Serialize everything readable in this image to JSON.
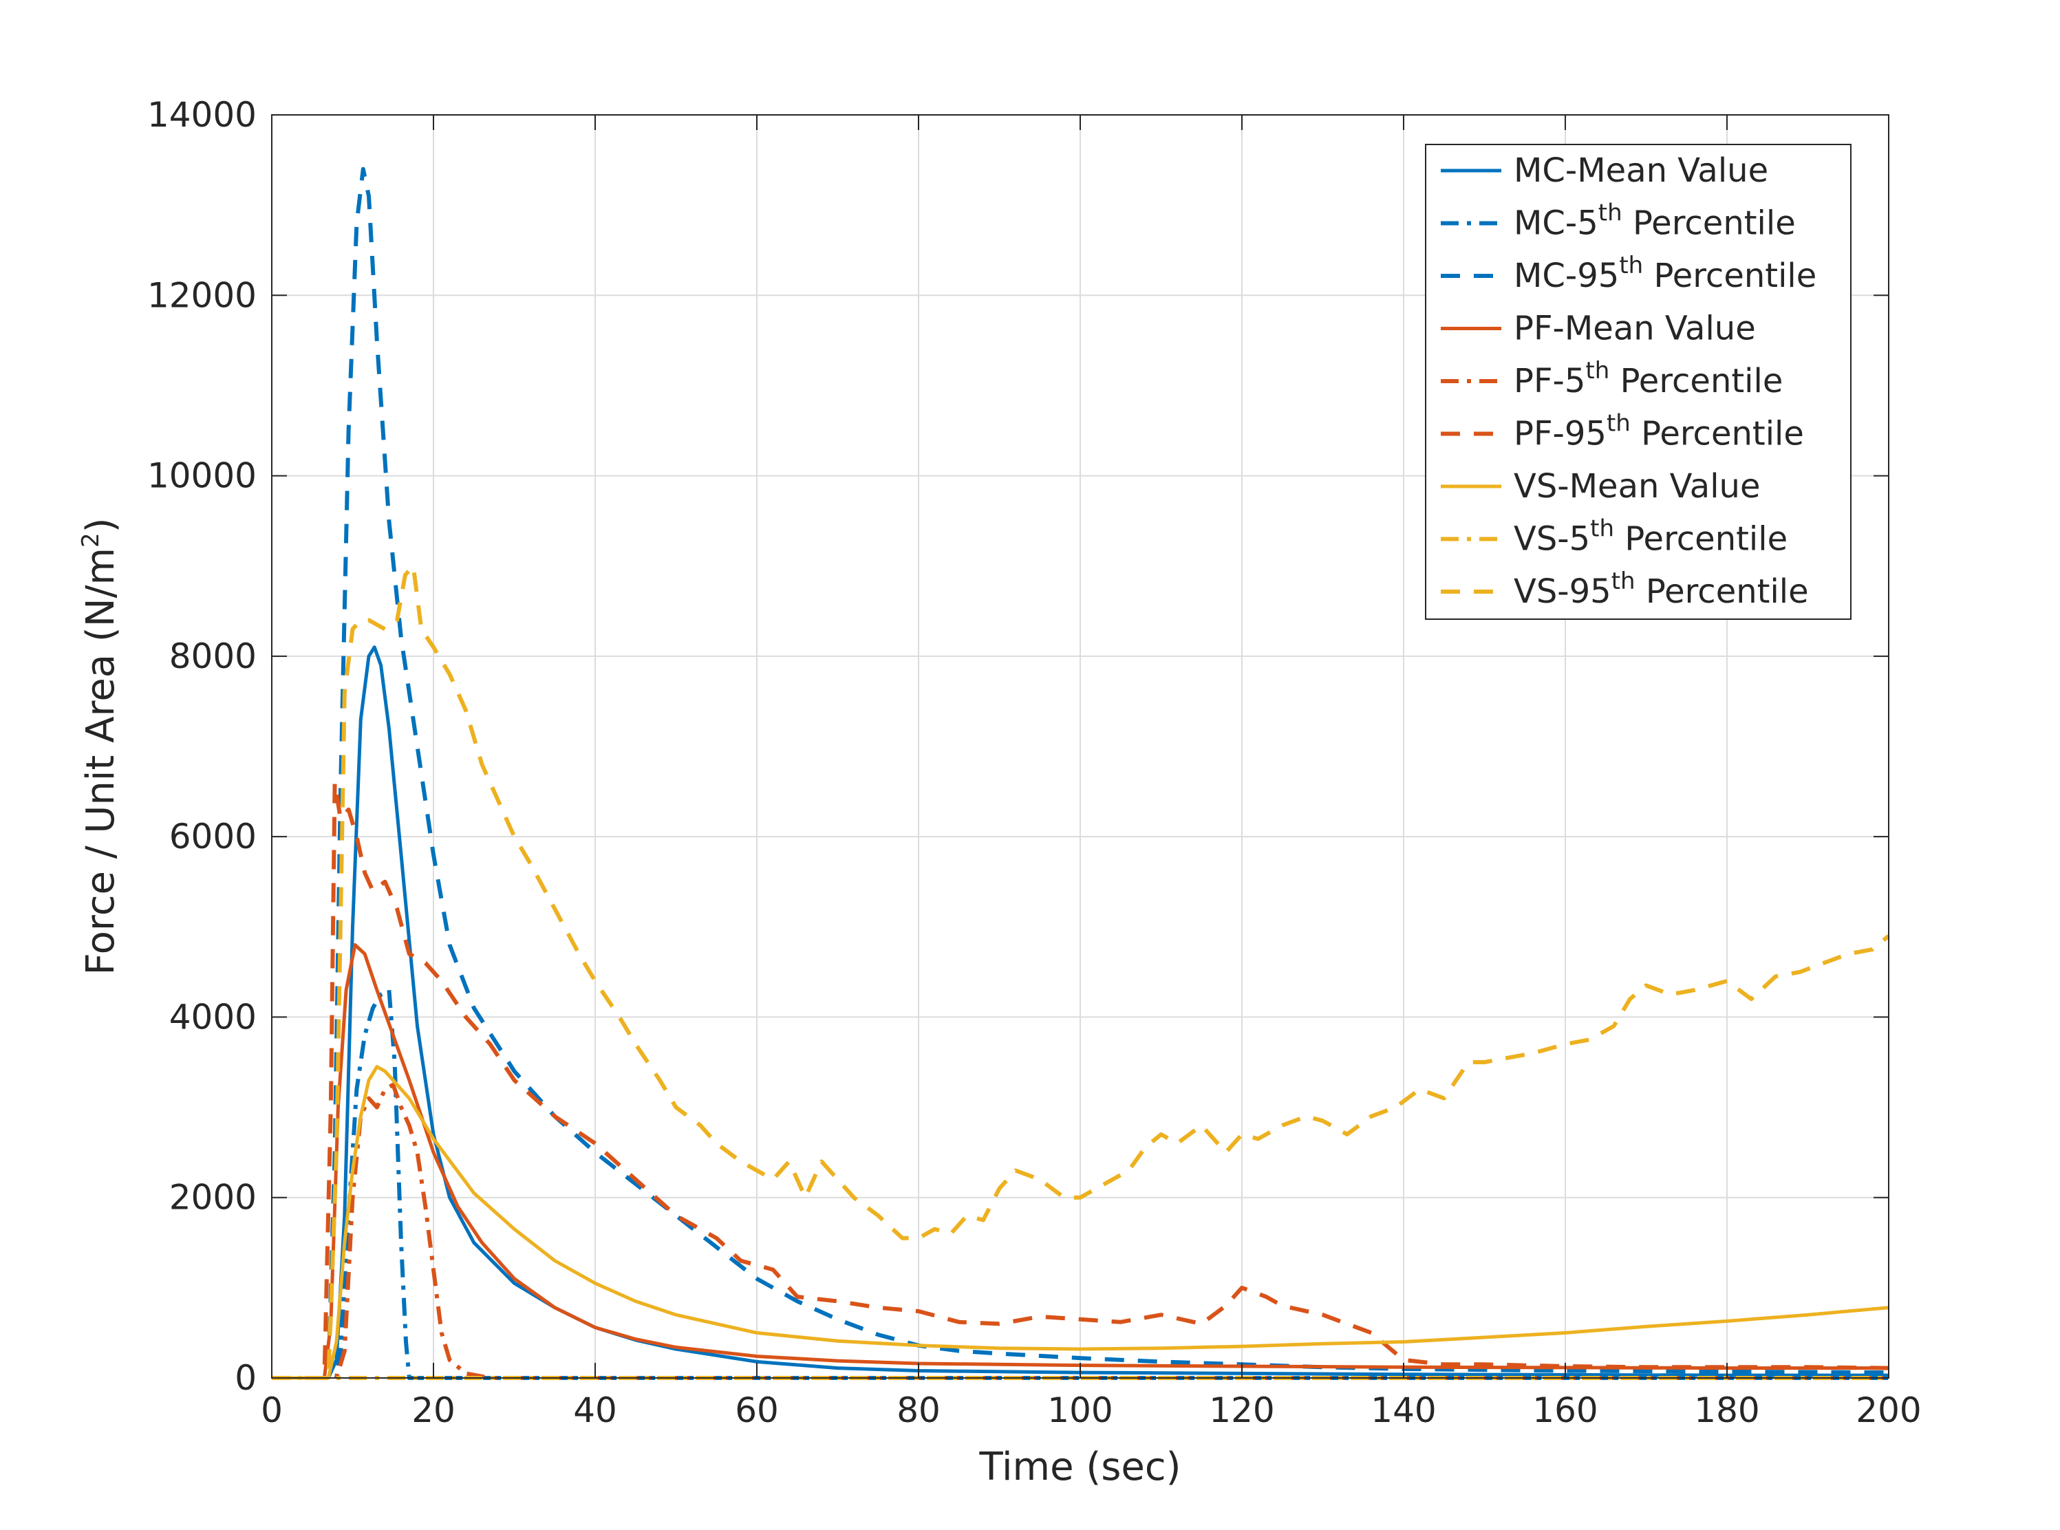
{
  "chart_data": {
    "type": "line",
    "title": "",
    "xlabel": "Time (sec)",
    "ylabel_main": "Force / Unit Area (N/m",
    "ylabel_sup": "2",
    "ylabel_end": ")",
    "xlim": [
      0,
      200
    ],
    "ylim": [
      0,
      14000
    ],
    "xticks": [
      0,
      20,
      40,
      60,
      80,
      100,
      120,
      140,
      160,
      180,
      200
    ],
    "yticks": [
      0,
      2000,
      4000,
      6000,
      8000,
      10000,
      12000,
      14000
    ],
    "grid": true,
    "legend_position": "top-right",
    "colors": {
      "MC": "#0072BD",
      "PF": "#D95319",
      "VS": "#EDB120"
    },
    "series": [
      {
        "name": "MC-Mean Value",
        "group": "MC",
        "style": "solid",
        "prefix": "MC-",
        "sup": "",
        "suffix": "Mean Value",
        "points": [
          [
            0,
            0
          ],
          [
            7,
            0
          ],
          [
            8,
            200
          ],
          [
            9,
            1800
          ],
          [
            10,
            5000
          ],
          [
            11,
            7300
          ],
          [
            12,
            8000
          ],
          [
            12.7,
            8100
          ],
          [
            13.5,
            7900
          ],
          [
            14.5,
            7200
          ],
          [
            16,
            5800
          ],
          [
            18,
            3900
          ],
          [
            20,
            2700
          ],
          [
            22,
            2000
          ],
          [
            25,
            1500
          ],
          [
            30,
            1050
          ],
          [
            35,
            780
          ],
          [
            40,
            560
          ],
          [
            45,
            420
          ],
          [
            50,
            320
          ],
          [
            60,
            180
          ],
          [
            70,
            110
          ],
          [
            80,
            80
          ],
          [
            100,
            60
          ],
          [
            120,
            50
          ],
          [
            140,
            40
          ],
          [
            160,
            35
          ],
          [
            180,
            30
          ],
          [
            200,
            30
          ]
        ]
      },
      {
        "name": "MC-5th Percentile",
        "group": "MC",
        "style": "dashdot",
        "prefix": "MC-",
        "sup": "th",
        "suffix": " Percentile",
        "num": "5",
        "points": [
          [
            0,
            0
          ],
          [
            8,
            0
          ],
          [
            8.5,
            300
          ],
          [
            9.5,
            1800
          ],
          [
            10.5,
            3200
          ],
          [
            11.5,
            3800
          ],
          [
            12.5,
            4100
          ],
          [
            13.5,
            4250
          ],
          [
            14.5,
            4300
          ],
          [
            15.2,
            3500
          ],
          [
            16,
            1500
          ],
          [
            16.6,
            400
          ],
          [
            17,
            0
          ],
          [
            200,
            0
          ]
        ]
      },
      {
        "name": "MC-95th Percentile",
        "group": "MC",
        "style": "dashed",
        "prefix": "MC-",
        "sup": "th",
        "suffix": " Percentile",
        "num": "95",
        "points": [
          [
            0,
            0
          ],
          [
            7,
            0
          ],
          [
            7.8,
            2500
          ],
          [
            8.5,
            6500
          ],
          [
            9.5,
            10500
          ],
          [
            10.5,
            12800
          ],
          [
            11.3,
            13400
          ],
          [
            12,
            13100
          ],
          [
            13,
            11500
          ],
          [
            14.5,
            9500
          ],
          [
            16,
            8200
          ],
          [
            18,
            7000
          ],
          [
            20,
            5800
          ],
          [
            22,
            4800
          ],
          [
            25,
            4100
          ],
          [
            30,
            3400
          ],
          [
            35,
            2900
          ],
          [
            40,
            2500
          ],
          [
            45,
            2150
          ],
          [
            50,
            1800
          ],
          [
            55,
            1450
          ],
          [
            60,
            1100
          ],
          [
            65,
            850
          ],
          [
            70,
            650
          ],
          [
            75,
            480
          ],
          [
            80,
            360
          ],
          [
            85,
            300
          ],
          [
            90,
            270
          ],
          [
            100,
            220
          ],
          [
            110,
            180
          ],
          [
            120,
            150
          ],
          [
            130,
            120
          ],
          [
            140,
            100
          ],
          [
            160,
            80
          ],
          [
            180,
            70
          ],
          [
            200,
            60
          ]
        ]
      },
      {
        "name": "PF-Mean Value",
        "group": "PF",
        "style": "solid",
        "prefix": "PF-",
        "sup": "",
        "suffix": "Mean Value",
        "points": [
          [
            0,
            0
          ],
          [
            6.5,
            0
          ],
          [
            7.3,
            600
          ],
          [
            8.2,
            3000
          ],
          [
            9.2,
            4300
          ],
          [
            10.3,
            4800
          ],
          [
            11.5,
            4700
          ],
          [
            13,
            4300
          ],
          [
            15,
            3800
          ],
          [
            17,
            3300
          ],
          [
            20,
            2500
          ],
          [
            23,
            1900
          ],
          [
            26,
            1500
          ],
          [
            30,
            1100
          ],
          [
            35,
            780
          ],
          [
            40,
            560
          ],
          [
            45,
            430
          ],
          [
            50,
            340
          ],
          [
            60,
            240
          ],
          [
            70,
            190
          ],
          [
            80,
            160
          ],
          [
            100,
            140
          ],
          [
            120,
            130
          ],
          [
            140,
            120
          ],
          [
            160,
            115
          ],
          [
            180,
            110
          ],
          [
            200,
            110
          ]
        ]
      },
      {
        "name": "PF-5th Percentile",
        "group": "PF",
        "style": "dashdot",
        "prefix": "PF-",
        "sup": "th",
        "suffix": " Percentile",
        "num": "5",
        "points": [
          [
            0,
            0
          ],
          [
            8,
            0
          ],
          [
            9,
            300
          ],
          [
            10,
            2000
          ],
          [
            11,
            2900
          ],
          [
            12,
            3100
          ],
          [
            13,
            3000
          ],
          [
            14,
            3200
          ],
          [
            15,
            3250
          ],
          [
            16,
            3000
          ],
          [
            17,
            2800
          ],
          [
            18,
            2500
          ],
          [
            19,
            1900
          ],
          [
            20,
            1200
          ],
          [
            21,
            500
          ],
          [
            22,
            200
          ],
          [
            24,
            50
          ],
          [
            27,
            0
          ],
          [
            200,
            0
          ]
        ]
      },
      {
        "name": "PF-95th Percentile",
        "group": "PF",
        "style": "dashed",
        "prefix": "PF-",
        "sup": "th",
        "suffix": " Percentile",
        "num": "95",
        "points": [
          [
            0,
            0
          ],
          [
            6.5,
            0
          ],
          [
            7.3,
            3000
          ],
          [
            7.8,
            6600
          ],
          [
            8.5,
            6200
          ],
          [
            9.5,
            6300
          ],
          [
            10.5,
            6000
          ],
          [
            11.5,
            5600
          ],
          [
            12.5,
            5400
          ],
          [
            14,
            5500
          ],
          [
            15.5,
            5200
          ],
          [
            17,
            4700
          ],
          [
            19,
            4600
          ],
          [
            21,
            4400
          ],
          [
            24,
            4000
          ],
          [
            27,
            3700
          ],
          [
            30,
            3300
          ],
          [
            35,
            2900
          ],
          [
            40,
            2600
          ],
          [
            45,
            2200
          ],
          [
            50,
            1800
          ],
          [
            55,
            1550
          ],
          [
            58,
            1300
          ],
          [
            62,
            1200
          ],
          [
            65,
            900
          ],
          [
            70,
            850
          ],
          [
            75,
            780
          ],
          [
            80,
            740
          ],
          [
            85,
            620
          ],
          [
            90,
            600
          ],
          [
            95,
            680
          ],
          [
            100,
            650
          ],
          [
            105,
            620
          ],
          [
            110,
            700
          ],
          [
            115,
            600
          ],
          [
            118,
            800
          ],
          [
            120,
            1000
          ],
          [
            123,
            900
          ],
          [
            125,
            800
          ],
          [
            130,
            700
          ],
          [
            133,
            600
          ],
          [
            136,
            500
          ],
          [
            140,
            200
          ],
          [
            145,
            150
          ],
          [
            150,
            150
          ],
          [
            160,
            130
          ],
          [
            170,
            120
          ],
          [
            180,
            120
          ],
          [
            190,
            120
          ],
          [
            200,
            110
          ]
        ]
      },
      {
        "name": "VS-Mean Value",
        "group": "VS",
        "style": "solid",
        "prefix": "VS-",
        "sup": "",
        "suffix": "Mean Value",
        "points": [
          [
            0,
            0
          ],
          [
            7,
            0
          ],
          [
            8,
            400
          ],
          [
            9,
            1500
          ],
          [
            10,
            2300
          ],
          [
            11,
            2900
          ],
          [
            12,
            3300
          ],
          [
            13,
            3450
          ],
          [
            14,
            3400
          ],
          [
            15,
            3300
          ],
          [
            17,
            3100
          ],
          [
            20,
            2650
          ],
          [
            25,
            2050
          ],
          [
            30,
            1650
          ],
          [
            35,
            1300
          ],
          [
            40,
            1050
          ],
          [
            45,
            850
          ],
          [
            50,
            700
          ],
          [
            60,
            500
          ],
          [
            70,
            410
          ],
          [
            80,
            360
          ],
          [
            90,
            330
          ],
          [
            100,
            320
          ],
          [
            110,
            330
          ],
          [
            120,
            350
          ],
          [
            130,
            380
          ],
          [
            140,
            400
          ],
          [
            150,
            450
          ],
          [
            160,
            500
          ],
          [
            170,
            570
          ],
          [
            180,
            630
          ],
          [
            190,
            700
          ],
          [
            200,
            780
          ]
        ]
      },
      {
        "name": "VS-5th Percentile",
        "group": "VS",
        "style": "dashdot",
        "prefix": "VS-",
        "sup": "th",
        "suffix": " Percentile",
        "num": "5",
        "points": [
          [
            0,
            0
          ],
          [
            200,
            0
          ]
        ]
      },
      {
        "name": "VS-95th Percentile",
        "group": "VS",
        "style": "dashed",
        "prefix": "VS-",
        "sup": "th",
        "suffix": " Percentile",
        "num": "95",
        "points": [
          [
            0,
            0
          ],
          [
            7,
            0
          ],
          [
            8,
            2500
          ],
          [
            9,
            7600
          ],
          [
            10,
            8300
          ],
          [
            11,
            8400
          ],
          [
            12,
            8400
          ],
          [
            13,
            8350
          ],
          [
            14,
            8300
          ],
          [
            15.5,
            8400
          ],
          [
            16.5,
            8900
          ],
          [
            17.5,
            9000
          ],
          [
            18.5,
            8300
          ],
          [
            20,
            8100
          ],
          [
            22,
            7800
          ],
          [
            24,
            7400
          ],
          [
            26,
            6800
          ],
          [
            28,
            6400
          ],
          [
            30,
            6000
          ],
          [
            32,
            5700
          ],
          [
            35,
            5200
          ],
          [
            38,
            4700
          ],
          [
            40,
            4400
          ],
          [
            43,
            4000
          ],
          [
            45,
            3700
          ],
          [
            48,
            3300
          ],
          [
            50,
            3000
          ],
          [
            53,
            2800
          ],
          [
            55,
            2600
          ],
          [
            58,
            2400
          ],
          [
            60,
            2300
          ],
          [
            62,
            2200
          ],
          [
            64,
            2400
          ],
          [
            66,
            2000
          ],
          [
            68,
            2400
          ],
          [
            70,
            2200
          ],
          [
            72,
            2000
          ],
          [
            75,
            1800
          ],
          [
            78,
            1550
          ],
          [
            80,
            1550
          ],
          [
            82,
            1650
          ],
          [
            84,
            1600
          ],
          [
            86,
            1800
          ],
          [
            88,
            1750
          ],
          [
            90,
            2100
          ],
          [
            92,
            2300
          ],
          [
            95,
            2200
          ],
          [
            98,
            2000
          ],
          [
            100,
            2000
          ],
          [
            103,
            2150
          ],
          [
            106,
            2300
          ],
          [
            108,
            2550
          ],
          [
            110,
            2700
          ],
          [
            112,
            2600
          ],
          [
            115,
            2800
          ],
          [
            118,
            2500
          ],
          [
            120,
            2700
          ],
          [
            122,
            2650
          ],
          [
            125,
            2800
          ],
          [
            128,
            2900
          ],
          [
            130,
            2850
          ],
          [
            133,
            2700
          ],
          [
            136,
            2900
          ],
          [
            139,
            3000
          ],
          [
            142,
            3200
          ],
          [
            145,
            3100
          ],
          [
            148,
            3500
          ],
          [
            150,
            3500
          ],
          [
            153,
            3550
          ],
          [
            156,
            3600
          ],
          [
            160,
            3700
          ],
          [
            163,
            3750
          ],
          [
            166,
            3900
          ],
          [
            168,
            4200
          ],
          [
            170,
            4350
          ],
          [
            173,
            4250
          ],
          [
            176,
            4300
          ],
          [
            180,
            4400
          ],
          [
            183,
            4200
          ],
          [
            186,
            4450
          ],
          [
            189,
            4500
          ],
          [
            192,
            4600
          ],
          [
            195,
            4700
          ],
          [
            198,
            4750
          ],
          [
            200,
            4900
          ]
        ]
      }
    ]
  }
}
